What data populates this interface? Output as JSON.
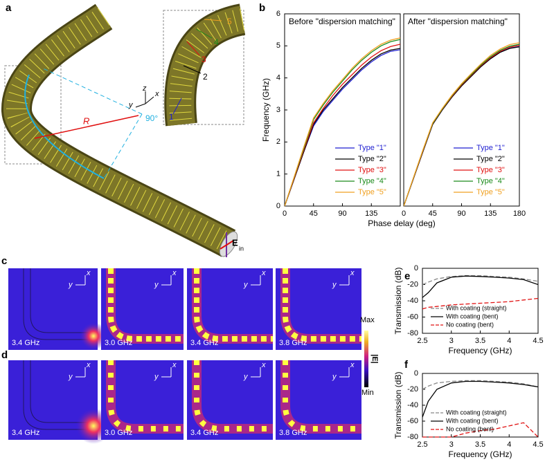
{
  "panel_labels": [
    "a",
    "b",
    "c",
    "d",
    "e",
    "f"
  ],
  "panel_a": {
    "radius": "R",
    "angle": "90°",
    "axes": [
      "x",
      "y",
      "z"
    ],
    "types": [
      "1",
      "2",
      "3",
      "4",
      "5"
    ],
    "field": "E",
    "field_sub": "in"
  },
  "field_maps": {
    "row_c": [
      "3.4 GHz",
      "3.0 GHz",
      "3.4 GHz",
      "3.8 GHz"
    ],
    "row_d": [
      "3.4 GHz",
      "3.0 GHz",
      "3.4 GHz",
      "3.8 GHz"
    ],
    "axes": [
      "x",
      "y"
    ],
    "colorbar": {
      "max": "Max",
      "min": "Min",
      "quantity": "|E|"
    }
  },
  "chart_data": [
    {
      "type": "line",
      "title": "Before \"dispersion matching\"",
      "xlabel": "Phase delay (deg)",
      "ylabel": "Frequency (GHz)",
      "x": [
        0,
        15,
        30,
        45,
        60,
        75,
        90,
        105,
        120,
        135,
        150,
        165,
        180
      ],
      "xlim": [
        0,
        180
      ],
      "xticks": [
        0,
        45,
        90,
        135
      ],
      "ylim": [
        0,
        6
      ],
      "yticks": [
        0,
        1,
        2,
        3,
        4,
        5,
        6
      ],
      "series": [
        {
          "name": "Type \"1\"",
          "color": "#1f1fd0",
          "values": [
            0,
            0.85,
            1.7,
            2.5,
            2.95,
            3.3,
            3.65,
            3.95,
            4.25,
            4.5,
            4.7,
            4.83,
            4.88
          ]
        },
        {
          "name": "Type \"2\"",
          "color": "#000000",
          "values": [
            0,
            0.85,
            1.7,
            2.55,
            3.0,
            3.35,
            3.7,
            4.0,
            4.3,
            4.55,
            4.75,
            4.87,
            4.92
          ]
        },
        {
          "name": "Type \"3\"",
          "color": "#e01010",
          "values": [
            0,
            0.87,
            1.75,
            2.6,
            3.05,
            3.45,
            3.8,
            4.1,
            4.4,
            4.65,
            4.85,
            4.98,
            5.05
          ]
        },
        {
          "name": "Type \"4\"",
          "color": "#1a8a1a",
          "values": [
            0,
            0.9,
            1.8,
            2.7,
            3.15,
            3.55,
            3.9,
            4.25,
            4.55,
            4.8,
            5.0,
            5.13,
            5.2
          ]
        },
        {
          "name": "Type \"5\"",
          "color": "#f0a020",
          "values": [
            0,
            0.92,
            1.85,
            2.75,
            3.2,
            3.6,
            3.95,
            4.3,
            4.6,
            4.85,
            5.05,
            5.18,
            5.25
          ]
        }
      ]
    },
    {
      "type": "line",
      "title": "After \"dispersion matching\"",
      "x": [
        0,
        15,
        30,
        45,
        60,
        75,
        90,
        105,
        120,
        135,
        150,
        165,
        180
      ],
      "xlim": [
        0,
        180
      ],
      "xticks": [
        0,
        45,
        90,
        135,
        180
      ],
      "ylim": [
        0,
        6
      ],
      "series": [
        {
          "name": "Type \"1\"",
          "color": "#1f1fd0",
          "values": [
            0,
            0.85,
            1.7,
            2.55,
            3.0,
            3.4,
            3.75,
            4.05,
            4.35,
            4.6,
            4.8,
            4.93,
            4.98
          ]
        },
        {
          "name": "Type \"2\"",
          "color": "#000000",
          "values": [
            0,
            0.85,
            1.7,
            2.55,
            3.0,
            3.4,
            3.75,
            4.05,
            4.35,
            4.6,
            4.8,
            4.92,
            4.97
          ]
        },
        {
          "name": "Type \"3\"",
          "color": "#e01010",
          "values": [
            0,
            0.86,
            1.72,
            2.57,
            3.02,
            3.42,
            3.78,
            4.08,
            4.38,
            4.63,
            4.83,
            4.96,
            5.02
          ]
        },
        {
          "name": "Type \"4\"",
          "color": "#1a8a1a",
          "values": [
            0,
            0.87,
            1.74,
            2.58,
            3.03,
            3.44,
            3.8,
            4.1,
            4.4,
            4.66,
            4.86,
            4.99,
            5.05
          ]
        },
        {
          "name": "Type \"5\"",
          "color": "#f0a020",
          "values": [
            0,
            0.88,
            1.76,
            2.6,
            3.05,
            3.46,
            3.82,
            4.13,
            4.43,
            4.7,
            4.9,
            5.04,
            5.1
          ]
        }
      ]
    },
    {
      "type": "line",
      "xlabel": "Frequency (GHz)",
      "ylabel": "Transmission (dB)",
      "x": [
        2.5,
        2.6,
        2.75,
        3,
        3.25,
        3.5,
        3.75,
        4,
        4.25,
        4.5
      ],
      "xlim": [
        2.5,
        4.5
      ],
      "xticks": [
        2.5,
        3,
        3.5,
        4,
        4.5
      ],
      "ylim": [
        -80,
        0
      ],
      "yticks": [
        -80,
        -60,
        -40,
        -20,
        0
      ],
      "series": [
        {
          "name": "With coating (straight)",
          "color": "#888888",
          "linestyle": "dashed",
          "values": [
            -20,
            -17,
            -13,
            -10,
            -9,
            -9,
            -10,
            -11,
            -13,
            -16
          ]
        },
        {
          "name": "With coating (bent)",
          "color": "#000000",
          "linestyle": "solid",
          "values": [
            -36,
            -30,
            -18,
            -11,
            -9.5,
            -10,
            -11,
            -12,
            -14,
            -20
          ]
        },
        {
          "name": "No coating (bent)",
          "color": "#e01010",
          "linestyle": "dashed",
          "values": [
            -50,
            -48,
            -47,
            -45,
            -44,
            -43,
            -42,
            -41,
            -39,
            -37
          ]
        }
      ]
    },
    {
      "type": "line",
      "xlabel": "Frequency (GHz)",
      "ylabel": "Transmission (dB)",
      "x": [
        2.5,
        2.6,
        2.75,
        3,
        3.25,
        3.5,
        3.75,
        4,
        4.25,
        4.5
      ],
      "xlim": [
        2.5,
        4.5
      ],
      "xticks": [
        2.5,
        3,
        3.5,
        4,
        4.5
      ],
      "ylim": [
        -80,
        0
      ],
      "yticks": [
        -80,
        -60,
        -40,
        -20,
        0
      ],
      "series": [
        {
          "name": "With coating (straight)",
          "color": "#888888",
          "linestyle": "dashed",
          "values": [
            -20,
            -16,
            -12,
            -10,
            -9,
            -9,
            -10,
            -11,
            -13,
            -17
          ]
        },
        {
          "name": "With coating (bent)",
          "color": "#000000",
          "linestyle": "solid",
          "values": [
            -55,
            -35,
            -20,
            -12,
            -10,
            -10,
            -11,
            -12,
            -14,
            -17
          ]
        },
        {
          "name": "No coating (bent)",
          "color": "#e01010",
          "linestyle": "dashed",
          "values": [
            -80,
            -80,
            -80,
            -80,
            -75,
            -72,
            -70,
            -66,
            -62,
            -80
          ]
        }
      ]
    }
  ]
}
